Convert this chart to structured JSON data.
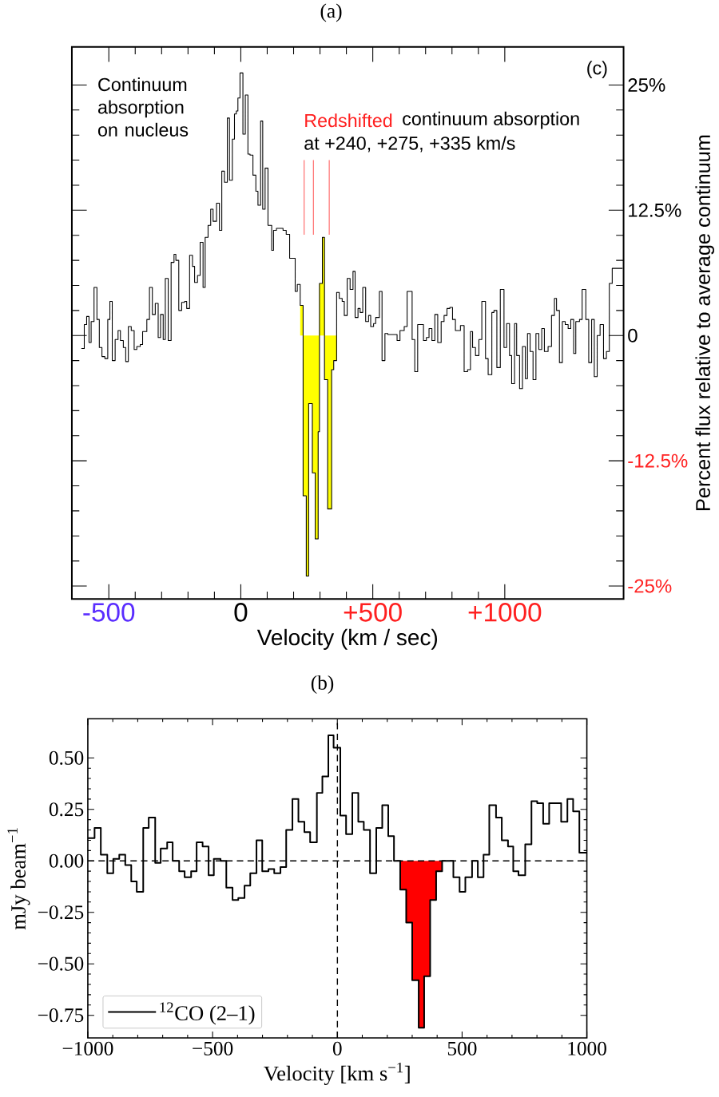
{
  "chart_data": [
    {
      "type": "step",
      "title": "(a)",
      "xlabel": "Velocity (km / sec)",
      "ylabel": "Percent flux relative to average continuum",
      "xlim": [
        -640,
        1450
      ],
      "ylim": [
        -26.3,
        28.8
      ],
      "xticks": [
        {
          "value": -500,
          "label": "-500"
        },
        0,
        {
          "value": 500,
          "label": "+500"
        },
        {
          "value": 1000,
          "label": "+1000"
        }
      ],
      "yticks": [
        {
          "value": -25,
          "label": "-25%"
        },
        {
          "value": -12.5,
          "label": "-12.5%"
        },
        0,
        {
          "value": 12.5,
          "label": "12.5%"
        },
        {
          "value": 25,
          "label": "25%"
        }
      ],
      "series": [
        {
          "color": "#000000",
          "x": [
            -604,
            -593,
            -584,
            -575,
            -567,
            -556,
            -545,
            -536,
            -526,
            -515,
            -504,
            -496,
            -487,
            -476,
            -465,
            -456,
            -445,
            -436,
            -426,
            -415,
            -404,
            -394,
            -381,
            -372,
            -356,
            -346,
            -335,
            -324,
            -313,
            -304,
            -294,
            -286,
            -275,
            -264,
            -253,
            -246,
            -235,
            -224,
            -213,
            -205,
            -194,
            -183,
            -175,
            -164,
            -154,
            -143,
            -135,
            -124,
            -114,
            -105,
            -92,
            -81,
            -72,
            -62,
            -51,
            -43,
            -32,
            -24,
            -17,
            -11,
            -3,
            8,
            17,
            27,
            35,
            46,
            57,
            65,
            75,
            83,
            92,
            103,
            117,
            124,
            135,
            160,
            172,
            185,
            206,
            214,
            225,
            236,
            248,
            257,
            271,
            282,
            293,
            298,
            309,
            317,
            329,
            344,
            352,
            363,
            373,
            384,
            392,
            403,
            414,
            425,
            433,
            444,
            452,
            462,
            473,
            484,
            492,
            503,
            511,
            525,
            535,
            546,
            557,
            592,
            603,
            619,
            630,
            649,
            659,
            670,
            692,
            703,
            713,
            724,
            735,
            746,
            759,
            770,
            781,
            792,
            802,
            813,
            832,
            846,
            859,
            870,
            878,
            889,
            902,
            913,
            927,
            937,
            951,
            959,
            970,
            983,
            997,
            1007,
            1018,
            1026,
            1037,
            1045,
            1056,
            1067,
            1078,
            1086,
            1096,
            1107,
            1118,
            1129,
            1140,
            1150,
            1164,
            1177,
            1188,
            1196,
            1207,
            1218,
            1229,
            1240,
            1250,
            1261,
            1269,
            1283,
            1293,
            1307,
            1318,
            1329,
            1339,
            1350,
            1361,
            1374,
            1385,
            1396,
            1407,
            1446
          ],
          "values": [
            -1.3,
            1.1,
            1.9,
            -0.7,
            1.4,
            4.8,
            1.6,
            -1.2,
            -2.1,
            -2.3,
            1.6,
            3.4,
            -2.5,
            -0.4,
            0.5,
            -0.5,
            -1.2,
            -2.6,
            0.9,
            0.5,
            -1.4,
            -1.1,
            -0.9,
            0.4,
            1.6,
            4.8,
            2.1,
            3.2,
            -0.2,
            2.1,
            -0.4,
            5.7,
            -0.5,
            7.3,
            8.1,
            7.5,
            2.5,
            3.3,
            3.4,
            2.7,
            8.0,
            6.9,
            5.3,
            6.0,
            9.3,
            4.8,
            9.8,
            11.0,
            12.6,
            11.4,
            13.2,
            10.5,
            16.4,
            15.3,
            21.7,
            15.5,
            19.6,
            22.1,
            22.4,
            23.7,
            26.2,
            20.1,
            24.0,
            18.1,
            18.0,
            16.0,
            14.4,
            13.0,
            21.4,
            12.6,
            16.7,
            11.0,
            8.5,
            10.5,
            10.7,
            10.5,
            10.1,
            7.7,
            4.4,
            5.1,
            3.0,
            -16,
            -24,
            -6.8,
            -13.7,
            -20.3,
            -9.6,
            5.2,
            9.8,
            -4.4,
            -17.3,
            -3.4,
            -2.5,
            4.3,
            3.7,
            3.4,
            2.0,
            5.7,
            4.6,
            6.4,
            1.8,
            2.7,
            2.3,
            4.8,
            1.4,
            2.0,
            0.9,
            1.2,
            1.8,
            4.4,
            -2.5,
            0.2,
            0.1,
            -0.5,
            0.5,
            0.9,
            4.4,
            -0.4,
            -3.6,
            1.1,
            -0.5,
            -0.2,
            0.7,
            -0.5,
            2.1,
            -0.7,
            1.4,
            2.0,
            2.7,
            2.8,
            1.6,
            0.5,
            1.0,
            -3.6,
            -3.4,
            0.4,
            -1.2,
            -2.0,
            -0.4,
            3.4,
            -2.3,
            -3.9,
            2.3,
            2.5,
            -3.2,
            4.6,
            -1.2,
            1.2,
            -2.0,
            -4.8,
            1.2,
            -2.0,
            -5.3,
            -1.1,
            -4.3,
            0.2,
            -1.6,
            -4.4,
            0.2,
            -1.4,
            0.7,
            -1.6,
            -1.1,
            2.0,
            3.7,
            2.5,
            -2.7,
            1.4,
            1.1,
            0.7,
            1.6,
            -1.8,
            1.4,
            1.6,
            4.6,
            1.6,
            -2.7,
            1.6,
            -4.1,
            0.0,
            1.1,
            -2.3,
            -1.6,
            5.2,
            6.7,
            6.7
          ]
        },
        {
          "type": "area",
          "color": "#ffff00",
          "x": [
            225,
            236,
            248,
            257,
            271,
            282,
            293,
            298,
            309,
            317,
            329,
            344,
            352,
            363
          ],
          "values": [
            3.0,
            -16,
            -24,
            -6.8,
            -13.7,
            -20.3,
            -9.6,
            5.2,
            9.8,
            -4.4,
            -17.3,
            -3.4,
            -2.5,
            4.3
          ]
        }
      ],
      "ref_lines": [
        {
          "axis": "x",
          "value": 240,
          "color": "#ff5c5c"
        },
        {
          "axis": "x",
          "value": 275,
          "color": "#ff5c5c"
        },
        {
          "axis": "x",
          "value": 335,
          "color": "#ff5c5c"
        }
      ],
      "annotations": [
        "Continuum absorption on nucleus",
        "Redshifted",
        "continuum absorption",
        "at +240, +275, +335 km/s",
        "(c)"
      ]
    },
    {
      "type": "step",
      "title": "(b)",
      "xlabel": "Velocity [km s$^{−1}$]",
      "ylabel": "mJy beam$^{−1}$",
      "xlim": [
        -1000,
        1000
      ],
      "ylim": [
        -0.86,
        0.69
      ],
      "xticks": [
        {
          "value": -1000,
          "label": "−1000"
        },
        {
          "value": -500,
          "label": "−500"
        },
        0,
        500,
        1000
      ],
      "yticks": [
        {
          "value": -0.75,
          "label": "−0.75"
        },
        {
          "value": -0.5,
          "label": "−0.50"
        },
        {
          "value": -0.25,
          "label": "−0.25"
        },
        {
          "value": 0,
          "label": "0.00"
        },
        {
          "value": 0.25,
          "label": "0.25"
        },
        {
          "value": 0.5,
          "label": "0.50"
        }
      ],
      "series": [
        {
          "name": "$^{12}$CO (2–1)",
          "color": "#000000",
          "x": [
            -1000,
            -973,
            -948,
            -922,
            -898,
            -874,
            -850,
            -826,
            -804,
            -778,
            -756,
            -730,
            -708,
            -682,
            -660,
            -634,
            -612,
            -586,
            -564,
            -540,
            -516,
            -495,
            -468,
            -445,
            -420,
            -397,
            -372,
            -349,
            -324,
            -301,
            -276,
            -253,
            -228,
            -205,
            -180,
            -156,
            -132,
            -109,
            -82,
            -60,
            -36,
            -15,
            12,
            35,
            60,
            84,
            106,
            131,
            156,
            180,
            204,
            227,
            252,
            276,
            300,
            326,
            348,
            372,
            396,
            420,
            444,
            465,
            490,
            513,
            540,
            563,
            586,
            609,
            636,
            659,
            684,
            705,
            726,
            753,
            778,
            801,
            825,
            849,
            874,
            897,
            922,
            945,
            970,
            1000
          ],
          "values": [
            0.11,
            0.16,
            0.03,
            -0.06,
            0.01,
            0.03,
            -0.02,
            -0.1,
            -0.15,
            0.16,
            0.21,
            -0.01,
            0.06,
            0.09,
            0.0,
            -0.05,
            -0.08,
            -0.05,
            0.09,
            0.07,
            -0.07,
            0.01,
            0.0,
            -0.13,
            -0.19,
            -0.18,
            -0.12,
            -0.06,
            0.1,
            -0.05,
            -0.04,
            -0.06,
            -0.03,
            0.15,
            0.3,
            0.19,
            0.14,
            0.09,
            0.33,
            0.41,
            0.61,
            0.55,
            0.22,
            0.13,
            0.33,
            0.19,
            0.15,
            -0.06,
            0.16,
            0.27,
            0.12,
            0.0,
            -0.14,
            -0.3,
            -0.58,
            -0.81,
            -0.56,
            -0.19,
            -0.05,
            0.0,
            0.0,
            -0.08,
            -0.15,
            -0.08,
            0.0,
            -0.08,
            0.03,
            0.27,
            0.21,
            0.1,
            0.07,
            -0.05,
            -0.07,
            0.08,
            0.29,
            0.28,
            0.18,
            0.28,
            0.28,
            0.19,
            0.3,
            0.24,
            0.04,
            0.04
          ]
        },
        {
          "type": "area",
          "color": "#ff0000",
          "x": [
            252,
            276,
            300,
            326,
            348,
            372,
            396,
            420
          ],
          "values": [
            -0.14,
            -0.3,
            -0.58,
            -0.81,
            -0.56,
            -0.19,
            -0.05,
            0.0
          ]
        }
      ],
      "ref_lines": [
        {
          "axis": "x",
          "value": 0,
          "line_style": "dashed",
          "color": "#000000"
        },
        {
          "axis": "y",
          "value": 0,
          "line_style": "dashed",
          "color": "#000000"
        }
      ],
      "legend": "bottom left"
    }
  ]
}
